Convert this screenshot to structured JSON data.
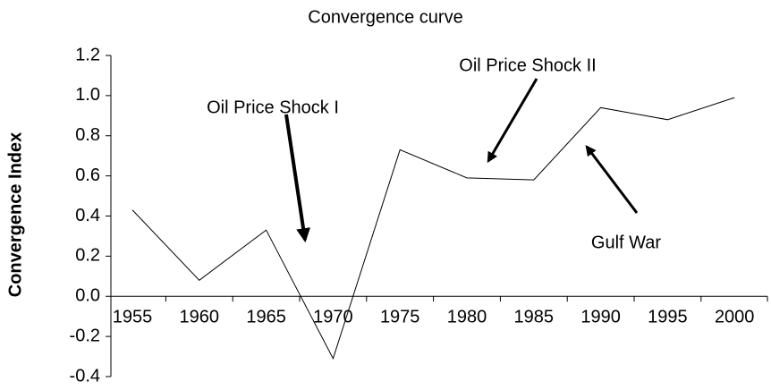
{
  "chart_data": {
    "type": "line",
    "title": "Convergence curve",
    "y_label": "Convergence Index",
    "categories": [
      "1955",
      "1960",
      "1965",
      "1970",
      "1975",
      "1980",
      "1985",
      "1990",
      "1995",
      "2000"
    ],
    "values": [
      0.43,
      0.08,
      0.33,
      -0.31,
      0.73,
      0.59,
      0.58,
      0.94,
      0.88,
      0.99
    ],
    "color": "#000000",
    "ylim": [
      -0.4,
      1.2
    ],
    "yticks": [
      -0.4,
      -0.2,
      {
        "value": 0,
        "label": "0.0"
      },
      0.2,
      0.4,
      0.6,
      0.8,
      {
        "value": 1,
        "label": "1.0"
      },
      1.2
    ],
    "annotations": [
      "Oil Price Shock I",
      "Oil Price Shock II",
      "Gulf War"
    ]
  }
}
